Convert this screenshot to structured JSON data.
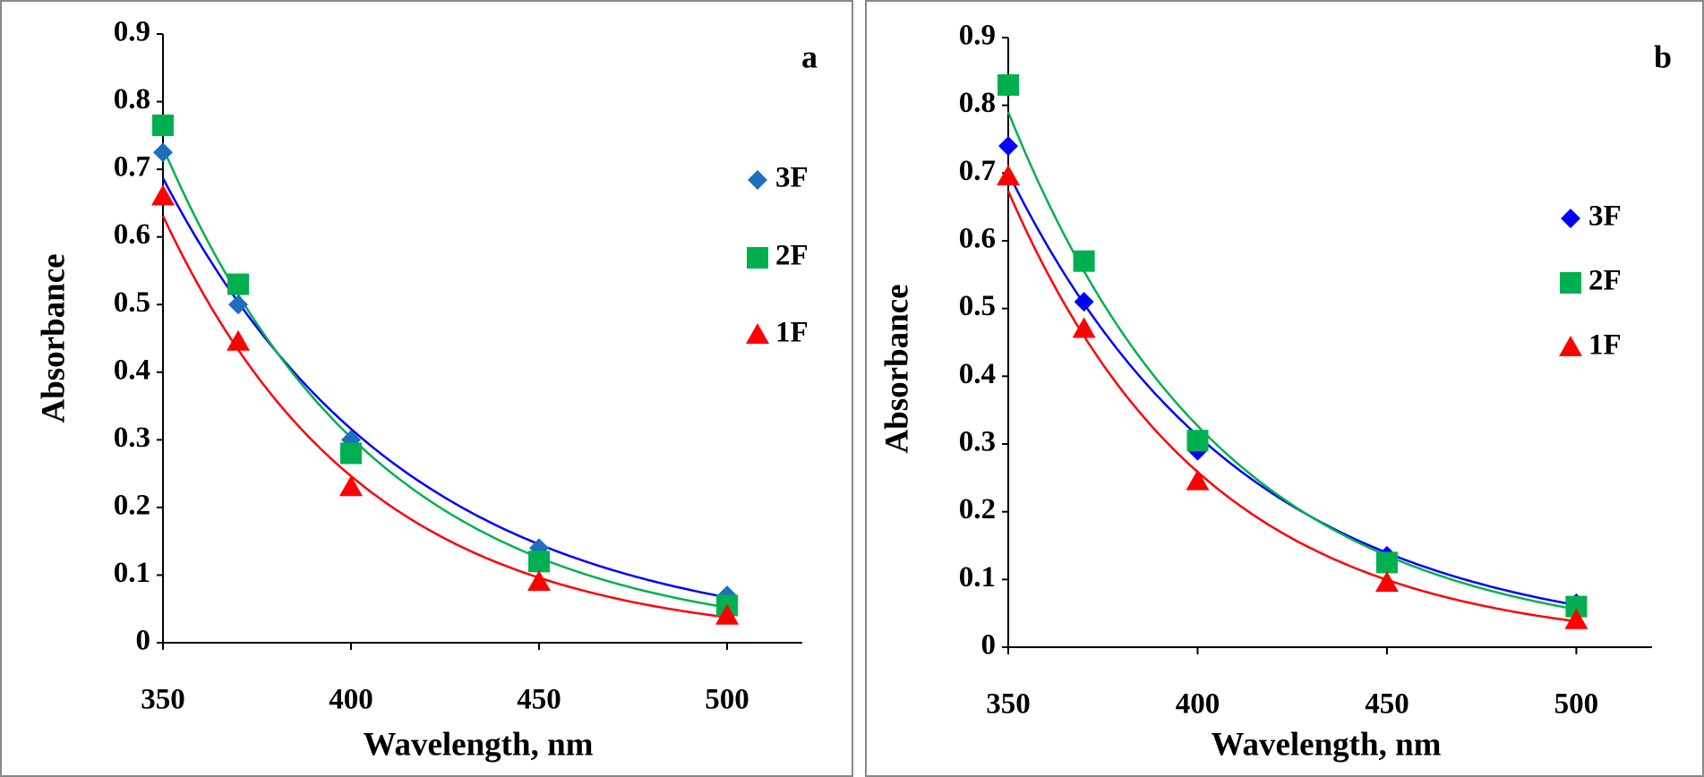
{
  "chart_data": [
    {
      "type": "scatter",
      "panel_label": "a",
      "x_label": "Wavelength, nm",
      "y_label": "Absorbance",
      "x": [
        350,
        370,
        400,
        450,
        500
      ],
      "xlim": [
        350,
        520
      ],
      "xticks": [
        350,
        400,
        450,
        500
      ],
      "ylim": [
        0,
        0.9
      ],
      "yticks": [
        0,
        0.1,
        0.2,
        0.3,
        0.4,
        0.5,
        0.6,
        0.7,
        0.8,
        0.9
      ],
      "trendline": "exponential",
      "series": [
        {
          "name": "3F",
          "color": "#1f6fbf",
          "line_color": "#0000ff",
          "marker": "diamond",
          "values": [
            0.725,
            0.5,
            0.3,
            0.14,
            0.07
          ]
        },
        {
          "name": "2F",
          "color": "#00b050",
          "line_color": "#00b050",
          "marker": "square",
          "values": [
            0.765,
            0.53,
            0.28,
            0.12,
            0.055
          ]
        },
        {
          "name": "1F",
          "color": "#ff0000",
          "line_color": "#ff0000",
          "marker": "triangle",
          "values": [
            0.66,
            0.445,
            0.23,
            0.09,
            0.04
          ]
        }
      ]
    },
    {
      "type": "scatter",
      "panel_label": "b",
      "x_label": "Wavelength, nm",
      "y_label": "Absorbance",
      "x": [
        350,
        370,
        400,
        450,
        500
      ],
      "xlim": [
        350,
        520
      ],
      "xticks": [
        350,
        400,
        450,
        500
      ],
      "ylim": [
        0,
        0.9
      ],
      "yticks": [
        0,
        0.1,
        0.2,
        0.3,
        0.4,
        0.5,
        0.6,
        0.7,
        0.8,
        0.9
      ],
      "trendline": "exponential",
      "series": [
        {
          "name": "3F",
          "color": "#0000ff",
          "line_color": "#0000ff",
          "marker": "diamond",
          "values": [
            0.74,
            0.51,
            0.29,
            0.135,
            0.065
          ]
        },
        {
          "name": "2F",
          "color": "#00b050",
          "line_color": "#00b050",
          "marker": "square",
          "values": [
            0.83,
            0.57,
            0.305,
            0.125,
            0.06
          ]
        },
        {
          "name": "1F",
          "color": "#ff0000",
          "line_color": "#ff0000",
          "marker": "triangle",
          "values": [
            0.695,
            0.47,
            0.245,
            0.095,
            0.04
          ]
        }
      ]
    }
  ]
}
